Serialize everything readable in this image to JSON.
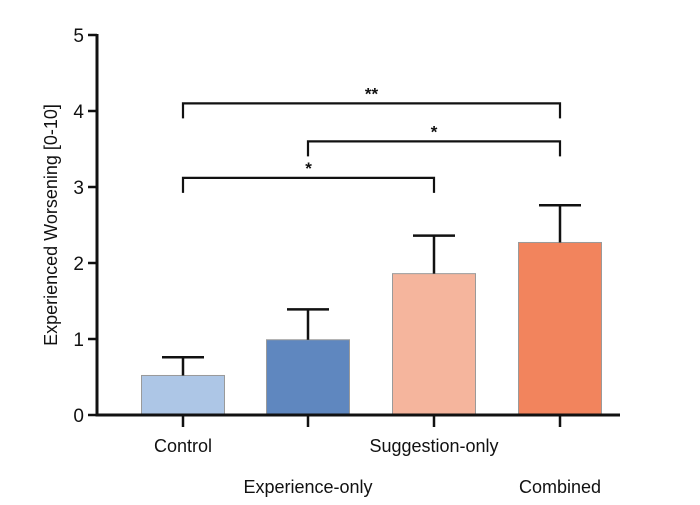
{
  "chart_data": {
    "type": "bar",
    "title": "",
    "xlabel": "",
    "ylabel": "Experienced Worsening [0-10]",
    "ylim": [
      0,
      5
    ],
    "yticks": [
      "0",
      "1",
      "2",
      "3",
      "4",
      "5"
    ],
    "grid": false,
    "categories": [
      "Control",
      "Experience-only",
      "Suggestion-only",
      "Combined"
    ],
    "values": [
      0.52,
      0.99,
      1.86,
      2.27
    ],
    "error_upper": [
      0.76,
      1.39,
      2.36,
      2.76
    ],
    "colors": [
      "#adc6e6",
      "#5f87bf",
      "#f5b59d",
      "#f2845d"
    ],
    "significance": [
      {
        "from": "Control",
        "to": "Combined",
        "label": "**",
        "level": 4.1
      },
      {
        "from": "Experience-only",
        "to": "Combined",
        "label": "*",
        "level": 3.6
      },
      {
        "from": "Control",
        "to": "Suggestion-only",
        "label": "*",
        "level": 3.12
      }
    ]
  }
}
